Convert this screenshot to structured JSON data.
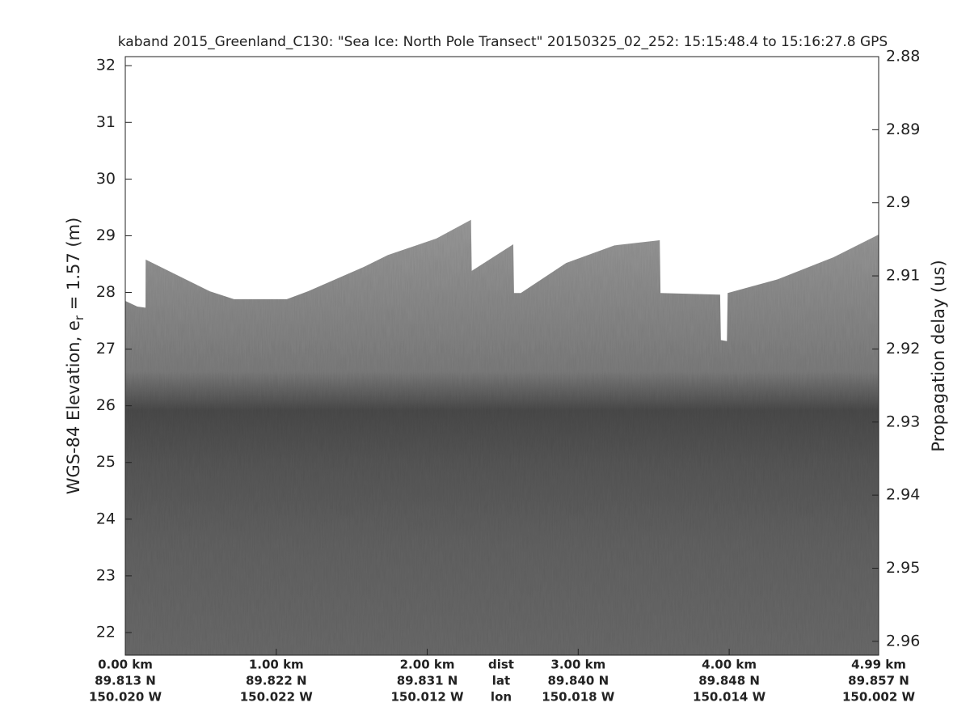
{
  "chart_data": {
    "type": "echogram",
    "title": "kaband 2015_Greenland_C130: \"Sea Ice: North Pole Transect\"  20150325_02_252: 15:15:48.4 to 15:16:27.8 GPS",
    "ylabel_parts": [
      "WGS-84 Elevation, e",
      "r",
      " = 1.57 (m)"
    ],
    "y2label": "Propagation delay (us)",
    "xlim": [
      0,
      4.99
    ],
    "ylim": [
      21.6,
      32.16
    ],
    "yticks": [
      22,
      23,
      24,
      25,
      26,
      27,
      28,
      29,
      30,
      31,
      32
    ],
    "y2lim": [
      2.88,
      2.9619
    ],
    "y2_reversed": true,
    "y2ticks": [
      2.88,
      2.89,
      2.9,
      2.91,
      2.92,
      2.93,
      2.94,
      2.95,
      2.96
    ],
    "xticks": [
      {
        "value": 0,
        "label": "0.00 km"
      },
      {
        "value": 1,
        "label": "1.00 km"
      },
      {
        "value": 2,
        "label": "2.00 km"
      },
      {
        "value": 3,
        "label": "3.00 km"
      },
      {
        "value": 4,
        "label": "4.00 km"
      },
      {
        "value": 4.99,
        "label": "4.99 km"
      }
    ],
    "x_lat_labels": [
      "89.813 N",
      "89.822 N",
      "89.831 N",
      "89.840 N",
      "89.848 N",
      "89.857 N"
    ],
    "x_lon_labels": [
      "150.020 W",
      "150.022 W",
      "150.012 W",
      "150.018 W",
      "150.014 W",
      "150.002 W"
    ],
    "row_labels": [
      "dist",
      "lat",
      "lon"
    ],
    "surface": {
      "x": [
        0,
        0.08,
        0.134,
        0.135,
        0.56,
        0.72,
        1.07,
        1.21,
        1.58,
        1.74,
        2.06,
        2.29,
        2.295,
        2.57,
        2.575,
        2.62,
        2.92,
        3.24,
        3.54,
        3.545,
        3.94,
        3.945,
        3.985,
        3.99,
        4.32,
        4.69,
        4.99
      ],
      "values": [
        27.85,
        27.75,
        27.73,
        28.58,
        28.02,
        27.88,
        27.88,
        28.02,
        28.45,
        28.66,
        28.95,
        29.28,
        28.38,
        28.85,
        27.99,
        27.99,
        28.52,
        28.83,
        28.92,
        27.99,
        27.96,
        27.16,
        27.14,
        27.99,
        28.23,
        28.62,
        29.02
      ]
    }
  }
}
